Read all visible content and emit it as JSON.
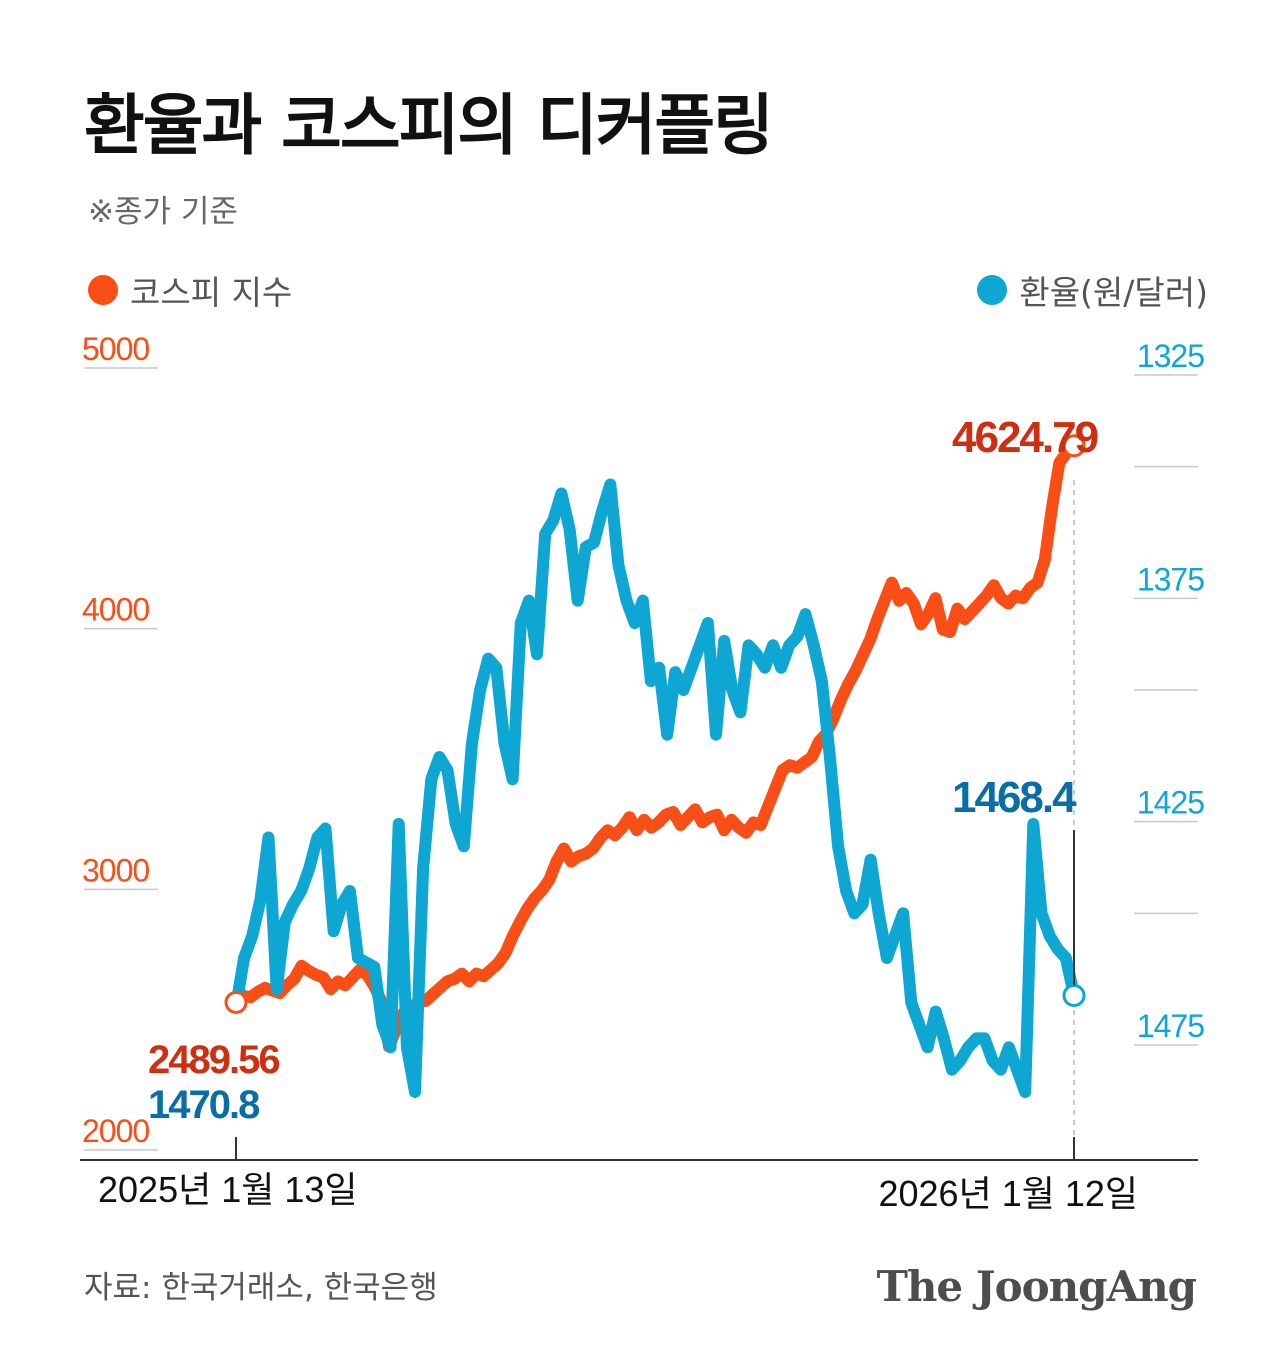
{
  "header": {
    "title": "환율과 코스피의 디커플링",
    "subtitle": "※종가 기준"
  },
  "legend": {
    "kospi": "코스피 지수",
    "fx": "환율(원/달러)"
  },
  "colors": {
    "kospi": "#fa4e17",
    "kospi_label": "#cf2f10",
    "fx": "#0ea7d4",
    "fx_label": "#0a6ea6",
    "axis": "#333333",
    "grid": "#c8c8c8"
  },
  "footer": {
    "source": "자료: 한국거래소, 한국은행",
    "brand": "The JoongAng"
  },
  "chart_data": {
    "type": "line",
    "title": "환율과 코스피의 디커플링",
    "x_start_label": "2025년 1월 13일",
    "x_end_label": "2026년 1월 12일",
    "left_axis": {
      "series": "코스피 지수",
      "range": [
        2000,
        5000
      ],
      "ticks": [
        "5000",
        "4000",
        "3000",
        "2000"
      ]
    },
    "right_axis": {
      "series": "환율(원/달러)",
      "range": [
        1325,
        1500
      ],
      "inverted": true,
      "ticks": [
        "1325",
        "1375",
        "1425",
        "1475"
      ]
    },
    "annotations": {
      "kospi_start": "2489.56",
      "kospi_end": "4624.79",
      "fx_start": "1470.8",
      "fx_end": "1468.4"
    },
    "series": [
      {
        "name": "코스피 지수",
        "axis": "left",
        "values": [
          2489.56,
          2515,
          2510,
          2530,
          2545,
          2535,
          2525,
          2555,
          2580,
          2630,
          2610,
          2595,
          2585,
          2540,
          2570,
          2555,
          2585,
          2615,
          2595,
          2550,
          2490,
          2320,
          2390,
          2450,
          2470,
          2490,
          2495,
          2520,
          2545,
          2570,
          2580,
          2600,
          2570,
          2600,
          2590,
          2615,
          2640,
          2680,
          2745,
          2800,
          2850,
          2890,
          2920,
          2960,
          3030,
          3080,
          3030,
          3050,
          3060,
          3080,
          3120,
          3150,
          3130,
          3160,
          3200,
          3150,
          3190,
          3160,
          3180,
          3210,
          3220,
          3170,
          3200,
          3230,
          3180,
          3200,
          3210,
          3150,
          3190,
          3160,
          3140,
          3180,
          3170,
          3240,
          3310,
          3380,
          3400,
          3390,
          3410,
          3430,
          3490,
          3520,
          3580,
          3650,
          3710,
          3760,
          3820,
          3880,
          3960,
          4030,
          4100,
          4030,
          4060,
          4020,
          3940,
          3980,
          4040,
          3920,
          3910,
          4000,
          3960,
          3990,
          4020,
          4050,
          4090,
          4040,
          4020,
          4050,
          4040,
          4080,
          4100,
          4190,
          4390,
          4560,
          4600,
          4624.79
        ]
      },
      {
        "name": "환율(원/달러)",
        "axis": "right",
        "values": [
          1470.8,
          1460,
          1455,
          1447,
          1433,
          1467,
          1452,
          1448,
          1445,
          1440,
          1433,
          1431,
          1454,
          1448,
          1445,
          1460,
          1461,
          1462,
          1475,
          1480,
          1430,
          1480,
          1490,
          1440,
          1420,
          1415,
          1418,
          1430,
          1435,
          1412,
          1400,
          1393,
          1395,
          1412,
          1420,
          1385,
          1380,
          1392,
          1365,
          1362,
          1356,
          1364,
          1380,
          1368,
          1367,
          1360,
          1354,
          1372,
          1380,
          1385,
          1380,
          1398,
          1395,
          1410,
          1396,
          1400,
          1395,
          1390,
          1385,
          1410,
          1389,
          1400,
          1405,
          1390,
          1392,
          1395,
          1390,
          1395,
          1390,
          1388,
          1383,
          1390,
          1398,
          1415,
          1435,
          1445,
          1450,
          1448,
          1438,
          1450,
          1460,
          1455,
          1450,
          1470,
          1475,
          1480,
          1472,
          1478,
          1485,
          1483,
          1480,
          1478,
          1478,
          1483,
          1485,
          1480,
          1485,
          1490,
          1430,
          1450,
          1455,
          1458,
          1460,
          1468.4
        ]
      }
    ]
  }
}
